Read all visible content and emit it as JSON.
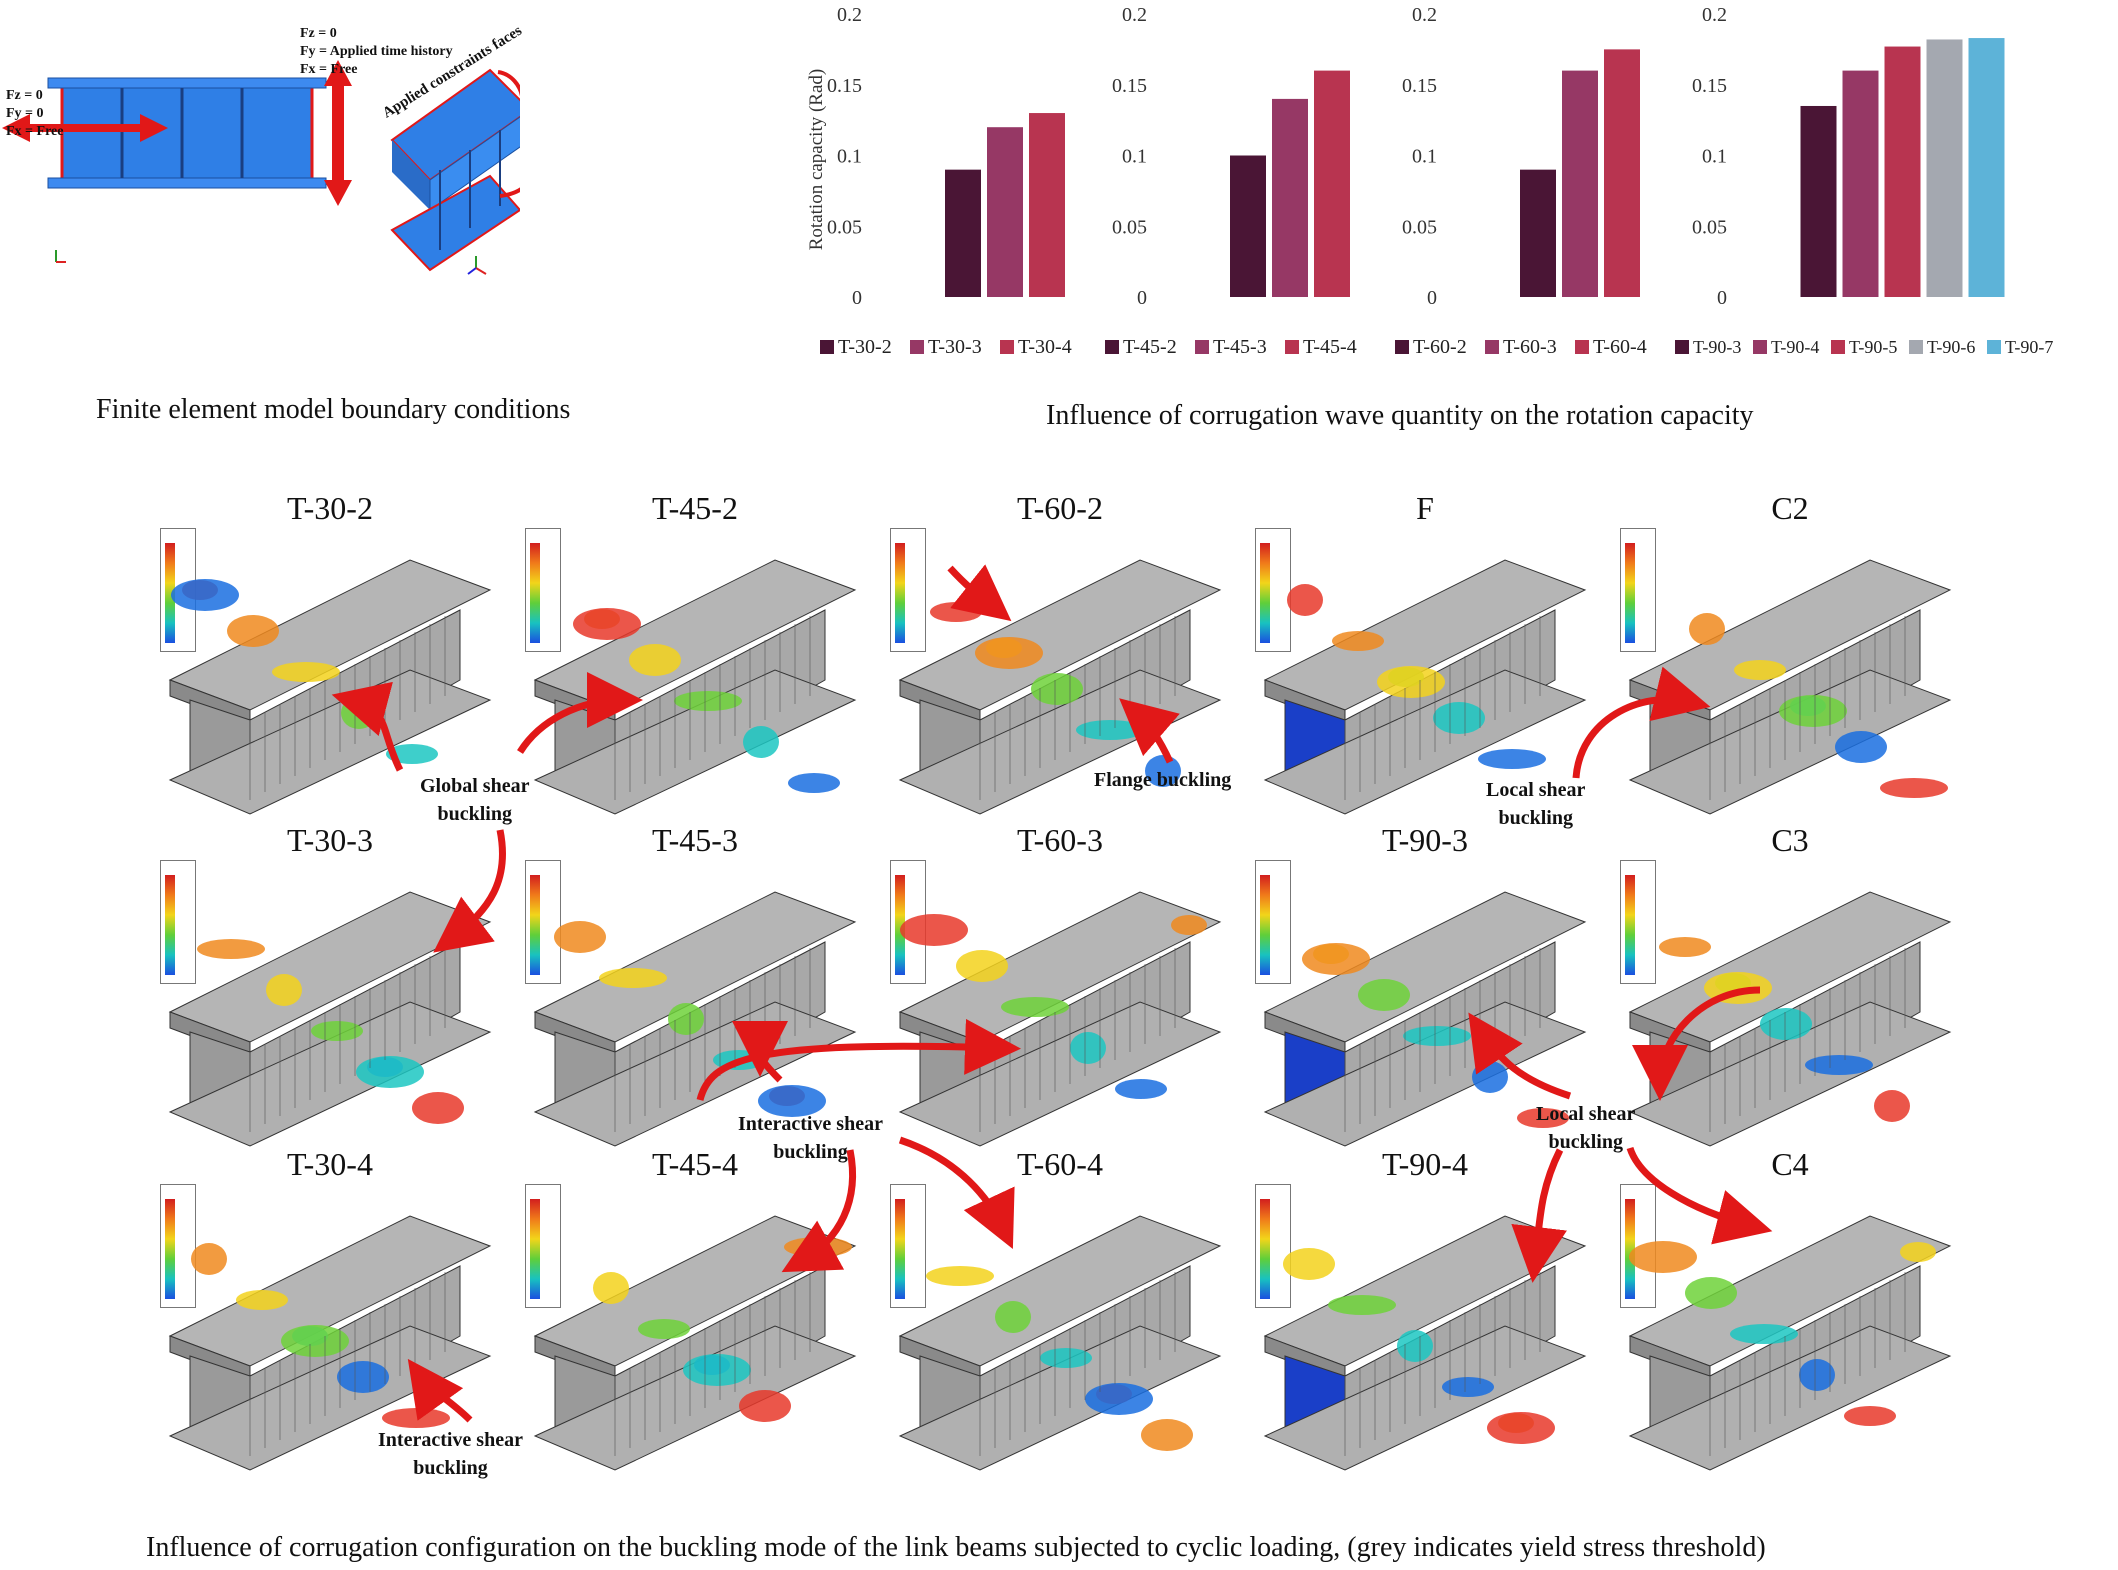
{
  "captions": {
    "fe_model": "Finite element model boundary conditions",
    "rotation": "Influence of corrugation wave quantity on the rotation capacity",
    "buckling": "Influence of corrugation configuration on the buckling mode of the link beams subjected to cyclic loading, (grey indicates yield stress threshold)"
  },
  "boundary_conditions": {
    "top": [
      "Fz = 0",
      "Fy = Applied time history",
      "Fx = Free"
    ],
    "left": [
      "Fz = 0",
      "Fy = 0",
      "Fx = Free"
    ],
    "constraint_label": "Applied constraints faces"
  },
  "colors": {
    "c1": "#4a1535",
    "c2": "#963865",
    "c3": "#b83450",
    "c4": "#a4a8b0",
    "c5": "#5db3d8",
    "beam_blue": "#2f7fe6",
    "arrow_red": "#e11818"
  },
  "chart_data": [
    {
      "type": "bar",
      "ylabel": "Rotation capacity (Rad)",
      "ylim": [
        0,
        0.2
      ],
      "yticks": [
        "0",
        "0.05",
        "0.1",
        "0.15",
        "0.2"
      ],
      "categories": [
        "T-30-2",
        "T-30-3",
        "T-30-4"
      ],
      "values": [
        0.09,
        0.12,
        0.13
      ],
      "legend": "bottom"
    },
    {
      "type": "bar",
      "ylabel": "",
      "ylim": [
        0,
        0.2
      ],
      "yticks": [
        "0",
        "0.05",
        "0.1",
        "0.15",
        "0.2"
      ],
      "categories": [
        "T-45-2",
        "T-45-3",
        "T-45-4"
      ],
      "values": [
        0.1,
        0.14,
        0.16
      ],
      "legend": "bottom"
    },
    {
      "type": "bar",
      "ylabel": "",
      "ylim": [
        0,
        0.2
      ],
      "yticks": [
        "0",
        "0.05",
        "0.1",
        "0.15",
        "0.2"
      ],
      "categories": [
        "T-60-2",
        "T-60-3",
        "T-60-4"
      ],
      "values": [
        0.09,
        0.16,
        0.175
      ],
      "legend": "bottom"
    },
    {
      "type": "bar",
      "ylabel": "",
      "ylim": [
        0,
        0.2
      ],
      "yticks": [
        "0",
        "0.05",
        "0.1",
        "0.15",
        "0.2"
      ],
      "categories": [
        "T-90-3",
        "T-90-4",
        "T-90-5",
        "T-90-6",
        "T-90-7"
      ],
      "values": [
        0.135,
        0.16,
        0.177,
        0.182,
        0.183
      ],
      "legend": "bottom"
    }
  ],
  "fe_panels": [
    [
      "T-30-2",
      "T-45-2",
      "T-60-2",
      "F",
      "C2"
    ],
    [
      "T-30-3",
      "T-45-3",
      "T-60-3",
      "T-90-3",
      "C3"
    ],
    [
      "T-30-4",
      "T-45-4",
      "T-60-4",
      "T-90-4",
      "C4"
    ]
  ],
  "annotations": {
    "global_shear": [
      "Global shear",
      "buckling"
    ],
    "flange": [
      "Flange buckling"
    ],
    "local_shear_1": [
      "Local shear",
      "buckling"
    ],
    "interactive_1": [
      "Interactive shear",
      "buckling"
    ],
    "local_shear_2": [
      "Local shear",
      "buckling"
    ],
    "interactive_2": [
      "Interactive shear",
      "buckling"
    ]
  }
}
